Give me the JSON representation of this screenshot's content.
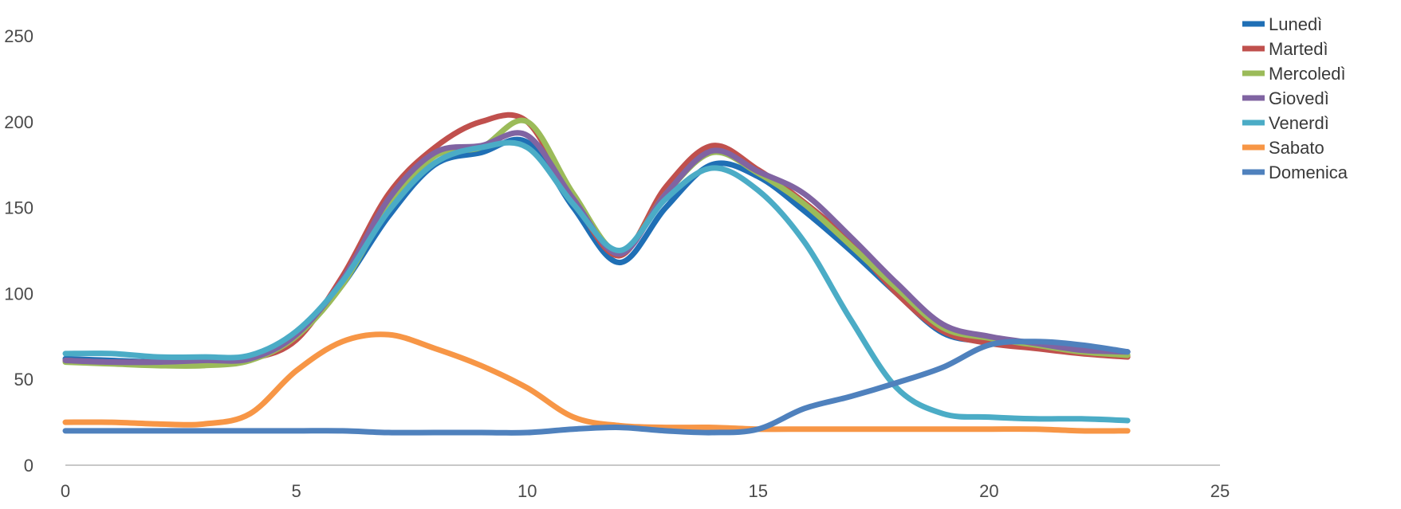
{
  "chart_data": {
    "type": "line",
    "title": "",
    "xlabel": "",
    "ylabel": "",
    "xlim": [
      0,
      25
    ],
    "ylim": [
      0,
      250
    ],
    "xticks": [
      0,
      5,
      10,
      15,
      20,
      25
    ],
    "yticks": [
      0,
      50,
      100,
      150,
      200,
      250
    ],
    "grid": false,
    "legend": "right",
    "x": [
      0,
      1,
      2,
      3,
      4,
      5,
      6,
      7,
      8,
      9,
      10,
      11,
      12,
      13,
      14,
      15,
      16,
      17,
      18,
      19,
      20,
      21,
      22,
      23
    ],
    "series": [
      {
        "name": "Lunedì",
        "color": "#1f6fb5",
        "values": [
          62,
          61,
          60,
          60,
          62,
          75,
          105,
          145,
          175,
          182,
          188,
          150,
          118,
          150,
          175,
          168,
          148,
          125,
          100,
          77,
          72,
          70,
          66,
          66
        ]
      },
      {
        "name": "Martedì",
        "color": "#c0504d",
        "values": [
          61,
          60,
          60,
          60,
          62,
          73,
          110,
          158,
          185,
          200,
          200,
          155,
          122,
          162,
          186,
          172,
          153,
          130,
          100,
          78,
          71,
          68,
          65,
          63
        ]
      },
      {
        "name": "Mercoledì",
        "color": "#9bbb59",
        "values": [
          60,
          59,
          58,
          58,
          61,
          75,
          105,
          150,
          180,
          185,
          200,
          158,
          124,
          158,
          182,
          170,
          152,
          128,
          103,
          80,
          74,
          70,
          66,
          64
        ]
      },
      {
        "name": "Giovedì",
        "color": "#8064a2",
        "values": [
          61,
          60,
          60,
          61,
          62,
          76,
          108,
          155,
          182,
          186,
          192,
          155,
          123,
          158,
          183,
          171,
          158,
          133,
          106,
          82,
          75,
          71,
          67,
          66
        ]
      },
      {
        "name": "Venerdì",
        "color": "#4bacc6",
        "values": [
          65,
          65,
          63,
          63,
          64,
          78,
          107,
          148,
          176,
          185,
          185,
          152,
          125,
          155,
          173,
          160,
          130,
          85,
          45,
          30,
          28,
          27,
          27,
          26
        ]
      },
      {
        "name": "Sabato",
        "color": "#f79646",
        "values": [
          25,
          25,
          24,
          24,
          30,
          55,
          72,
          76,
          68,
          58,
          45,
          28,
          23,
          22,
          22,
          21,
          21,
          21,
          21,
          21,
          21,
          21,
          20,
          20
        ]
      },
      {
        "name": "Domenica",
        "color": "#4f81bd",
        "values": [
          20,
          20,
          20,
          20,
          20,
          20,
          20,
          19,
          19,
          19,
          19,
          21,
          22,
          20,
          19,
          21,
          33,
          40,
          48,
          57,
          70,
          72,
          70,
          66
        ]
      }
    ]
  }
}
